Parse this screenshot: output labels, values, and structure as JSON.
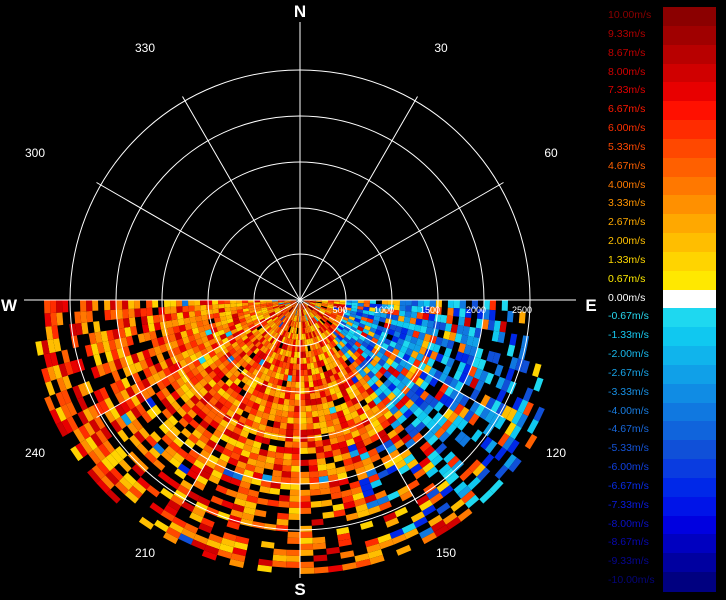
{
  "compass": {
    "north": "N",
    "east": "E",
    "south": "S",
    "west": "W"
  },
  "angle_labels": [
    "30",
    "60",
    "120",
    "150",
    "210",
    "240",
    "300",
    "330"
  ],
  "range_labels": [
    "500",
    "1000",
    "1500",
    "2000",
    "2500"
  ],
  "legend": {
    "entries": [
      {
        "label": "10.00m/s",
        "color": "#8b0000",
        "text": "#8b0000"
      },
      {
        "label": "9.33m/s",
        "color": "#a00000",
        "text": "#b00000"
      },
      {
        "label": "8.67m/s",
        "color": "#b80000",
        "text": "#c00000"
      },
      {
        "label": "8.00m/s",
        "color": "#d00000",
        "text": "#d00000"
      },
      {
        "label": "7.33m/s",
        "color": "#e80000",
        "text": "#e00000"
      },
      {
        "label": "6.67m/s",
        "color": "#ff1000",
        "text": "#ff1800"
      },
      {
        "label": "6.00m/s",
        "color": "#ff2c00",
        "text": "#ff3000"
      },
      {
        "label": "5.33m/s",
        "color": "#ff4800",
        "text": "#ff4800"
      },
      {
        "label": "4.67m/s",
        "color": "#ff6000",
        "text": "#ff6000"
      },
      {
        "label": "4.00m/s",
        "color": "#ff7800",
        "text": "#ff7a00"
      },
      {
        "label": "3.33m/s",
        "color": "#ff9000",
        "text": "#ff9400"
      },
      {
        "label": "2.67m/s",
        "color": "#ffa800",
        "text": "#ffaa00"
      },
      {
        "label": "2.00m/s",
        "color": "#ffbe00",
        "text": "#ffc000"
      },
      {
        "label": "1.33m/s",
        "color": "#ffd400",
        "text": "#ffd800"
      },
      {
        "label": "0.67m/s",
        "color": "#ffe800",
        "text": "#ffec00"
      },
      {
        "label": "0.00m/s",
        "color": "#ffffff",
        "text": "#ffffff"
      },
      {
        "label": "-0.67m/s",
        "color": "#1ed8f0",
        "text": "#28d8f0"
      },
      {
        "label": "-1.33m/s",
        "color": "#10c8f0",
        "text": "#18c8f0"
      },
      {
        "label": "-2.00m/s",
        "color": "#10b4ec",
        "text": "#18b8ec"
      },
      {
        "label": "-2.67m/s",
        "color": "#10a0e8",
        "text": "#18a4e8"
      },
      {
        "label": "-3.33m/s",
        "color": "#108ce4",
        "text": "#1890e4"
      },
      {
        "label": "-4.00m/s",
        "color": "#1078e0",
        "text": "#187ce0"
      },
      {
        "label": "-4.67m/s",
        "color": "#1064dc",
        "text": "#1868dc"
      },
      {
        "label": "-5.33m/s",
        "color": "#1050d8",
        "text": "#1454d8"
      },
      {
        "label": "-6.00m/s",
        "color": "#0a3ce0",
        "text": "#1040e0"
      },
      {
        "label": "-6.67m/s",
        "color": "#0028e8",
        "text": "#082ce8"
      },
      {
        "label": "-7.33m/s",
        "color": "#0014e8",
        "text": "#0a1ce0"
      },
      {
        "label": "-8.00m/s",
        "color": "#0000e0",
        "text": "#0a10c8"
      },
      {
        "label": "-8.67m/s",
        "color": "#0000c0",
        "text": "#0808b0"
      },
      {
        "label": "-9.33m/s",
        "color": "#0000a0",
        "text": "#060690"
      },
      {
        "label": "-10.00m/s",
        "color": "#000080",
        "text": "#050578"
      }
    ]
  }
}
